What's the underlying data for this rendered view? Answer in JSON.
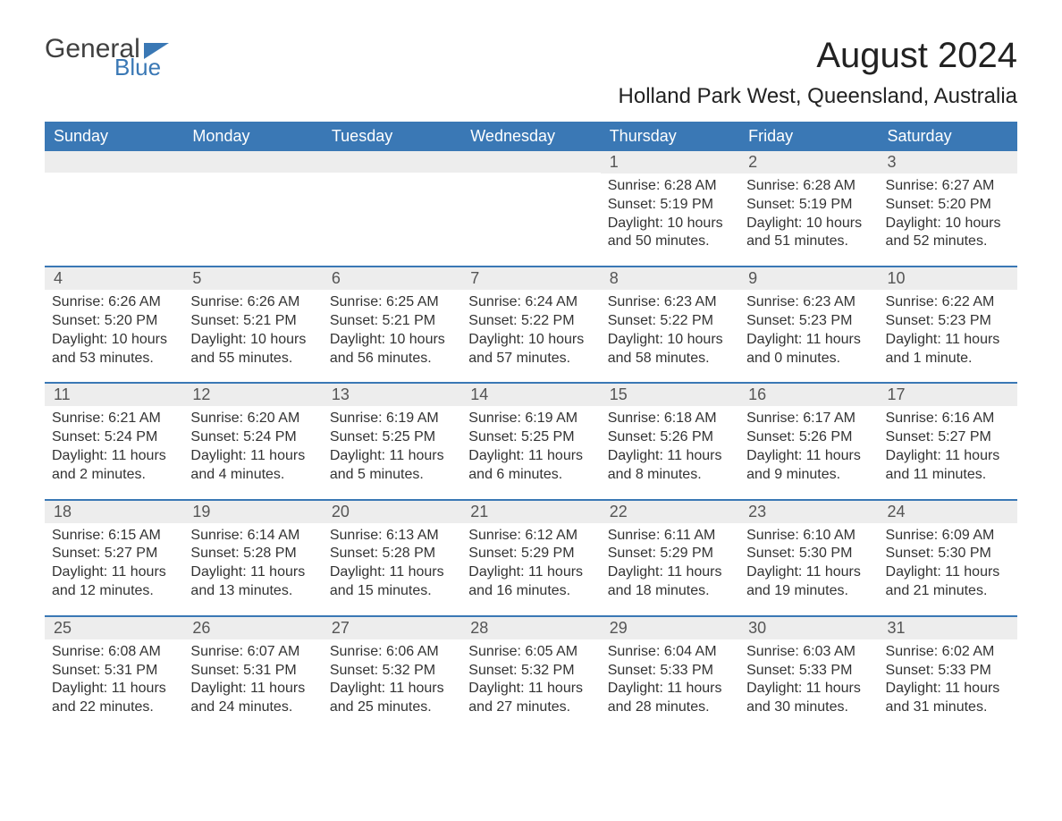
{
  "logo": {
    "text_general": "General",
    "text_blue": "Blue"
  },
  "title": "August 2024",
  "subtitle": "Holland Park West, Queensland, Australia",
  "colors": {
    "header_bg": "#3a78b5",
    "header_text": "#ffffff",
    "daynum_bg": "#ededed",
    "body_text": "#333333",
    "page_bg": "#ffffff",
    "logo_gray": "#404040",
    "logo_blue": "#3a78b5"
  },
  "day_names": [
    "Sunday",
    "Monday",
    "Tuesday",
    "Wednesday",
    "Thursday",
    "Friday",
    "Saturday"
  ],
  "first_day_index": 4,
  "days": {
    "1": {
      "sunrise": "6:28 AM",
      "sunset": "5:19 PM",
      "daylight": "10 hours and 50 minutes."
    },
    "2": {
      "sunrise": "6:28 AM",
      "sunset": "5:19 PM",
      "daylight": "10 hours and 51 minutes."
    },
    "3": {
      "sunrise": "6:27 AM",
      "sunset": "5:20 PM",
      "daylight": "10 hours and 52 minutes."
    },
    "4": {
      "sunrise": "6:26 AM",
      "sunset": "5:20 PM",
      "daylight": "10 hours and 53 minutes."
    },
    "5": {
      "sunrise": "6:26 AM",
      "sunset": "5:21 PM",
      "daylight": "10 hours and 55 minutes."
    },
    "6": {
      "sunrise": "6:25 AM",
      "sunset": "5:21 PM",
      "daylight": "10 hours and 56 minutes."
    },
    "7": {
      "sunrise": "6:24 AM",
      "sunset": "5:22 PM",
      "daylight": "10 hours and 57 minutes."
    },
    "8": {
      "sunrise": "6:23 AM",
      "sunset": "5:22 PM",
      "daylight": "10 hours and 58 minutes."
    },
    "9": {
      "sunrise": "6:23 AM",
      "sunset": "5:23 PM",
      "daylight": "11 hours and 0 minutes."
    },
    "10": {
      "sunrise": "6:22 AM",
      "sunset": "5:23 PM",
      "daylight": "11 hours and 1 minute."
    },
    "11": {
      "sunrise": "6:21 AM",
      "sunset": "5:24 PM",
      "daylight": "11 hours and 2 minutes."
    },
    "12": {
      "sunrise": "6:20 AM",
      "sunset": "5:24 PM",
      "daylight": "11 hours and 4 minutes."
    },
    "13": {
      "sunrise": "6:19 AM",
      "sunset": "5:25 PM",
      "daylight": "11 hours and 5 minutes."
    },
    "14": {
      "sunrise": "6:19 AM",
      "sunset": "5:25 PM",
      "daylight": "11 hours and 6 minutes."
    },
    "15": {
      "sunrise": "6:18 AM",
      "sunset": "5:26 PM",
      "daylight": "11 hours and 8 minutes."
    },
    "16": {
      "sunrise": "6:17 AM",
      "sunset": "5:26 PM",
      "daylight": "11 hours and 9 minutes."
    },
    "17": {
      "sunrise": "6:16 AM",
      "sunset": "5:27 PM",
      "daylight": "11 hours and 11 minutes."
    },
    "18": {
      "sunrise": "6:15 AM",
      "sunset": "5:27 PM",
      "daylight": "11 hours and 12 minutes."
    },
    "19": {
      "sunrise": "6:14 AM",
      "sunset": "5:28 PM",
      "daylight": "11 hours and 13 minutes."
    },
    "20": {
      "sunrise": "6:13 AM",
      "sunset": "5:28 PM",
      "daylight": "11 hours and 15 minutes."
    },
    "21": {
      "sunrise": "6:12 AM",
      "sunset": "5:29 PM",
      "daylight": "11 hours and 16 minutes."
    },
    "22": {
      "sunrise": "6:11 AM",
      "sunset": "5:29 PM",
      "daylight": "11 hours and 18 minutes."
    },
    "23": {
      "sunrise": "6:10 AM",
      "sunset": "5:30 PM",
      "daylight": "11 hours and 19 minutes."
    },
    "24": {
      "sunrise": "6:09 AM",
      "sunset": "5:30 PM",
      "daylight": "11 hours and 21 minutes."
    },
    "25": {
      "sunrise": "6:08 AM",
      "sunset": "5:31 PM",
      "daylight": "11 hours and 22 minutes."
    },
    "26": {
      "sunrise": "6:07 AM",
      "sunset": "5:31 PM",
      "daylight": "11 hours and 24 minutes."
    },
    "27": {
      "sunrise": "6:06 AM",
      "sunset": "5:32 PM",
      "daylight": "11 hours and 25 minutes."
    },
    "28": {
      "sunrise": "6:05 AM",
      "sunset": "5:32 PM",
      "daylight": "11 hours and 27 minutes."
    },
    "29": {
      "sunrise": "6:04 AM",
      "sunset": "5:33 PM",
      "daylight": "11 hours and 28 minutes."
    },
    "30": {
      "sunrise": "6:03 AM",
      "sunset": "5:33 PM",
      "daylight": "11 hours and 30 minutes."
    },
    "31": {
      "sunrise": "6:02 AM",
      "sunset": "5:33 PM",
      "daylight": "11 hours and 31 minutes."
    }
  },
  "labels": {
    "sunrise": "Sunrise: ",
    "sunset": "Sunset: ",
    "daylight": "Daylight: "
  }
}
